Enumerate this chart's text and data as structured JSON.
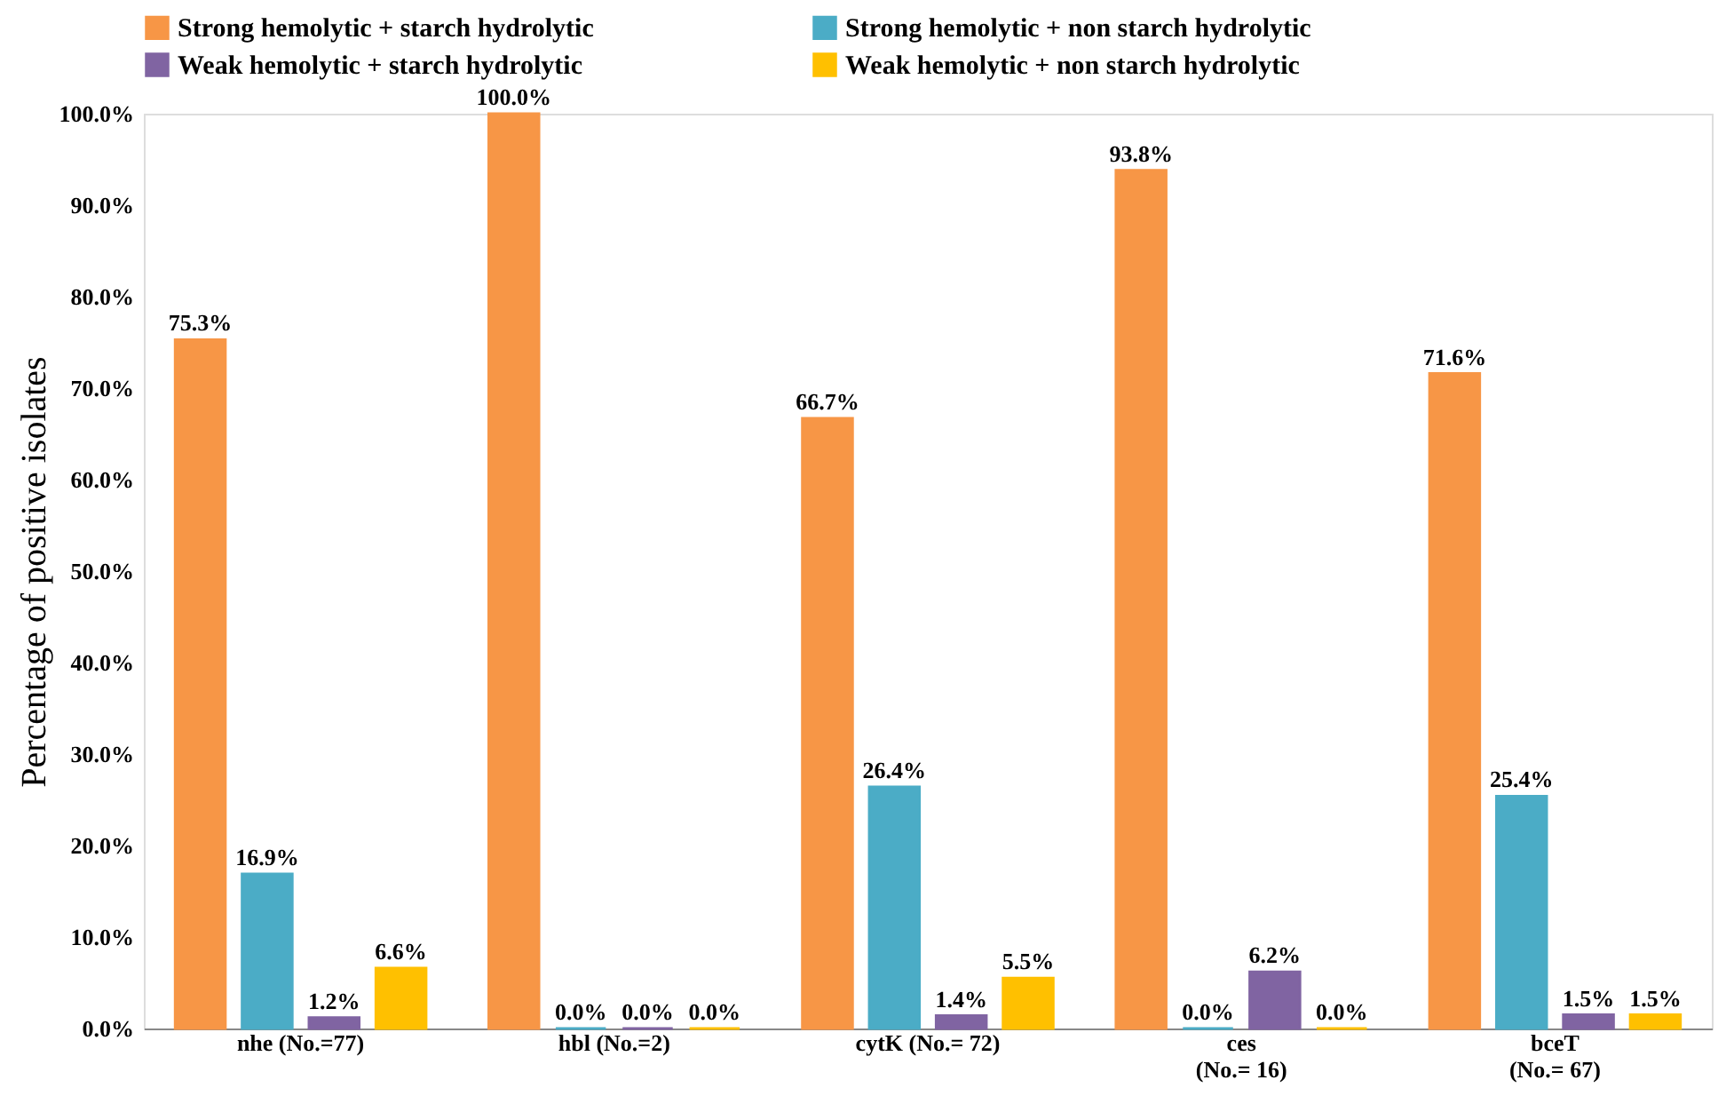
{
  "chart_data": {
    "type": "bar",
    "ylabel": "Percentage of positive isolates",
    "categories": [
      "nhe (No.=77)",
      "hbl (No.=2)",
      "cytK (No.= 72)",
      "ces\n(No.= 16)",
      "bceT\n(No.= 67)"
    ],
    "series": [
      {
        "name": "Strong hemolytic + starch hydrolytic",
        "color": "#f79646",
        "values": [
          75.3,
          100.0,
          66.7,
          93.8,
          71.6
        ],
        "value_labels": [
          "75.3%",
          "100.0%",
          "66.7%",
          "93.8%",
          "71.6%"
        ]
      },
      {
        "name": "Strong hemolytic + non starch hydrolytic",
        "color": "#4bacc6",
        "values": [
          16.9,
          0.0,
          26.4,
          0.0,
          25.4
        ],
        "value_labels": [
          "16.9%",
          "0.0%",
          "26.4%",
          "0.0%",
          "25.4%"
        ]
      },
      {
        "name": "Weak hemolytic + starch hydrolytic",
        "color": "#8064a2",
        "values": [
          1.2,
          0.0,
          1.4,
          6.2,
          1.5
        ],
        "value_labels": [
          "1.2%",
          "0.0%",
          "1.4%",
          "6.2%",
          "1.5%"
        ]
      },
      {
        "name": "Weak hemolytic + non starch hydrolytic",
        "color": "#ffc000",
        "values": [
          6.6,
          0.0,
          5.5,
          0.0,
          1.5
        ],
        "value_labels": [
          "6.6%",
          "0.0%",
          "5.5%",
          "0.0%",
          "1.5%"
        ]
      }
    ],
    "ylim": [
      0,
      100
    ],
    "yticks": [
      {
        "value": 0,
        "label": "0.0%"
      },
      {
        "value": 10,
        "label": "10.0%"
      },
      {
        "value": 20,
        "label": "20.0%"
      },
      {
        "value": 30,
        "label": "30.0%"
      },
      {
        "value": 40,
        "label": "40.0%"
      },
      {
        "value": 50,
        "label": "50.0%"
      },
      {
        "value": 60,
        "label": "60.0%"
      },
      {
        "value": 70,
        "label": "70.0%"
      },
      {
        "value": 80,
        "label": "80.0%"
      },
      {
        "value": 90,
        "label": "90.0%"
      },
      {
        "value": 100,
        "label": "100.0%"
      }
    ],
    "grid": false,
    "legend": "top"
  }
}
